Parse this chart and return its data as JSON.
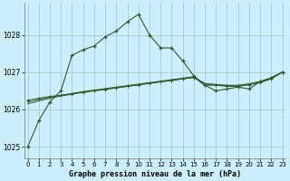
{
  "title": "Graphe pression niveau de la mer (hPa)",
  "background_color": "#cceeff",
  "grid_color": "#aacccc",
  "line_color": "#2d5a2d",
  "xlim": [
    -0.3,
    23.3
  ],
  "ylim": [
    1024.7,
    1028.85
  ],
  "yticks": [
    1025,
    1026,
    1027,
    1028
  ],
  "xticks": [
    0,
    1,
    2,
    3,
    4,
    5,
    6,
    7,
    8,
    9,
    10,
    11,
    12,
    13,
    14,
    15,
    16,
    17,
    18,
    19,
    20,
    21,
    22,
    23
  ],
  "series1": [
    1025.0,
    1025.7,
    1026.2,
    1026.5,
    1027.45,
    1027.6,
    1027.7,
    1027.95,
    1028.1,
    1028.35,
    1028.55,
    1028.0,
    1027.65,
    1027.65,
    1027.3,
    1026.9,
    1026.65,
    1026.5,
    1026.55,
    1026.6,
    1026.55,
    1026.75,
    1026.85,
    1027.0
  ],
  "series2": [
    1026.25,
    1026.3,
    1026.35,
    1026.38,
    1026.42,
    1026.46,
    1026.5,
    1026.54,
    1026.58,
    1026.62,
    1026.66,
    1026.7,
    1026.74,
    1026.78,
    1026.82,
    1026.86,
    1026.65,
    1026.65,
    1026.62,
    1026.62,
    1026.66,
    1026.72,
    1026.82,
    1027.0
  ],
  "series3": [
    1026.2,
    1026.27,
    1026.33,
    1026.38,
    1026.43,
    1026.48,
    1026.52,
    1026.56,
    1026.6,
    1026.64,
    1026.68,
    1026.72,
    1026.76,
    1026.8,
    1026.84,
    1026.88,
    1026.68,
    1026.66,
    1026.64,
    1026.64,
    1026.68,
    1026.74,
    1026.84,
    1027.0
  ],
  "series4": [
    1026.15,
    1026.23,
    1026.3,
    1026.36,
    1026.41,
    1026.46,
    1026.5,
    1026.54,
    1026.58,
    1026.62,
    1026.66,
    1026.7,
    1026.74,
    1026.78,
    1026.82,
    1026.86,
    1026.7,
    1026.67,
    1026.65,
    1026.65,
    1026.69,
    1026.75,
    1026.85,
    1027.0
  ]
}
